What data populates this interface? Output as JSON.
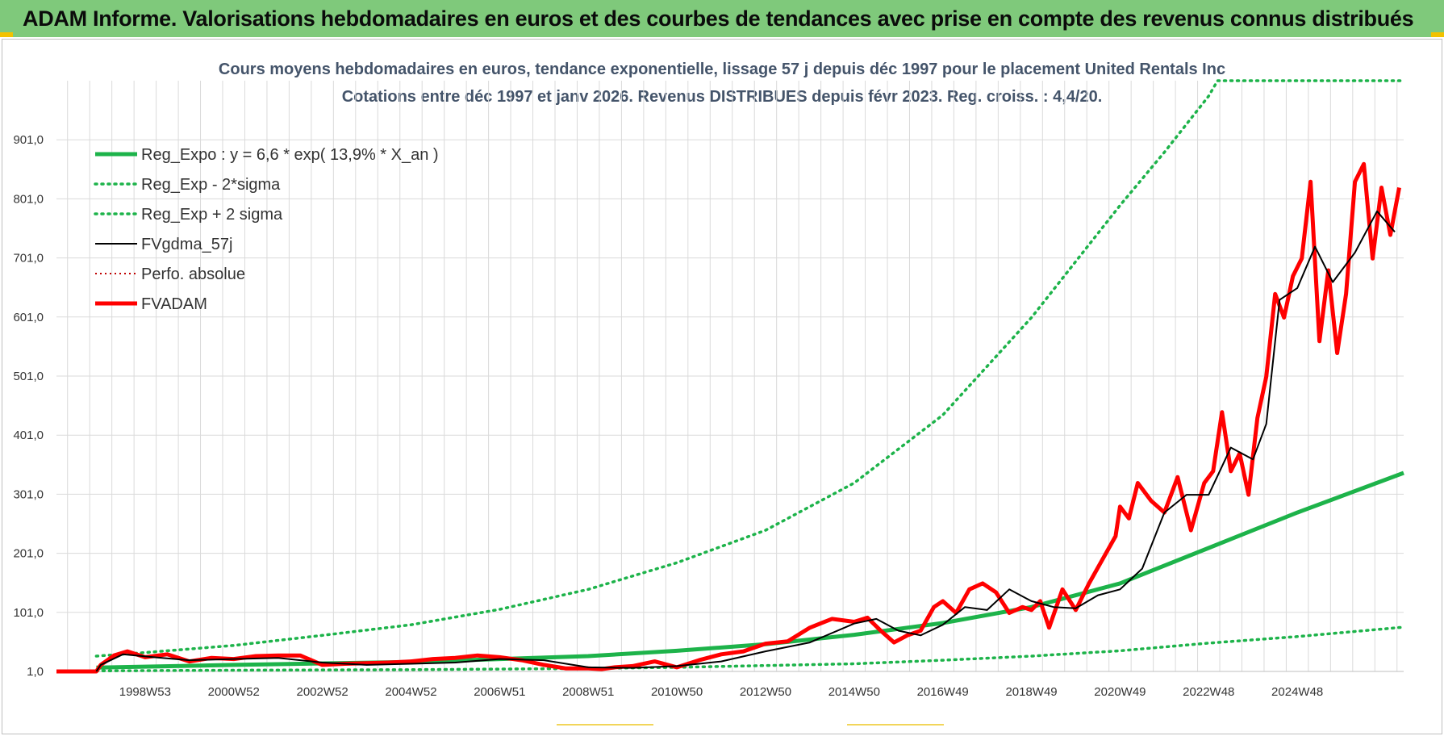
{
  "banner": {
    "title": "ADAM Informe. Valorisations hebdomadaires en euros et des courbes de tendances avec prise en compte des revenus connus distribués"
  },
  "colors": {
    "banner_bg": "#7fc97b",
    "reg_green": "#1db34a",
    "price_red": "#ff0000",
    "smooth_black": "#000000",
    "perfo_red": "#c00000",
    "grid": "#dadada",
    "title": "#44546a"
  },
  "chart_data": {
    "type": "line",
    "title": "Cours moyens hebdomadaires en euros, tendance exponentielle, lissage 57 j depuis déc 1997 pour le placement United Rentals Inc",
    "subtitle": "Cotations entre déc 1997 et janv 2026. Revenus DISTRIBUES depuis févr 2023. Reg. croiss. : 4,4/20.",
    "xlabel": "",
    "ylabel": "",
    "ylim": [
      1,
      1001
    ],
    "xlim": [
      1996.0,
      2026.4
    ],
    "y_ticks": [
      "1,0",
      "101,0",
      "201,0",
      "301,0",
      "401,0",
      "501,0",
      "601,0",
      "701,0",
      "801,0",
      "901,0"
    ],
    "x_ticks": [
      {
        "label": "1998W53",
        "x": 1998.0
      },
      {
        "label": "2000W52",
        "x": 2000.0
      },
      {
        "label": "2002W52",
        "x": 2002.0
      },
      {
        "label": "2004W52",
        "x": 2004.0
      },
      {
        "label": "2006W51",
        "x": 2006.0
      },
      {
        "label": "2008W51",
        "x": 2008.0
      },
      {
        "label": "2010W50",
        "x": 2010.0
      },
      {
        "label": "2012W50",
        "x": 2012.0
      },
      {
        "label": "2014W50",
        "x": 2014.0
      },
      {
        "label": "2016W49",
        "x": 2016.0
      },
      {
        "label": "2018W49",
        "x": 2018.0
      },
      {
        "label": "2020W49",
        "x": 2020.0
      },
      {
        "label": "2022W48",
        "x": 2022.0
      },
      {
        "label": "2024W48",
        "x": 2024.0
      }
    ],
    "legend_position": "top-left",
    "series": [
      {
        "name": "Reg_Expo : y = 6,6 * exp( 13,9% *  X_an )",
        "style": "solid-thick",
        "color": "#1db34a",
        "x": [
          1996.9,
          2000,
          2004,
          2008,
          2010,
          2012,
          2014,
          2016,
          2018,
          2020,
          2022,
          2024,
          2026.4
        ],
        "y": [
          7.4,
          12,
          17,
          27,
          36,
          47,
          63,
          83,
          110,
          150,
          210,
          270,
          337
        ]
      },
      {
        "name": "Reg_Exp - 2*sigma",
        "style": "dotted",
        "color": "#1db34a",
        "x": [
          1996.9,
          2000,
          2004,
          2008,
          2010,
          2012,
          2014,
          2016,
          2018,
          2020,
          2022,
          2024,
          2026.4
        ],
        "y": [
          2,
          3,
          4,
          6,
          8,
          11,
          14,
          20,
          27,
          36,
          49,
          60,
          76
        ]
      },
      {
        "name": "Reg_Exp + 2 sigma",
        "style": "dotted",
        "color": "#1db34a",
        "x": [
          1996.9,
          1998,
          2000,
          2002,
          2004,
          2006,
          2008,
          2010,
          2012,
          2014,
          2016,
          2018,
          2020,
          2021,
          2022,
          2022.2,
          2026.4
        ],
        "y": [
          27,
          33,
          45,
          62,
          80,
          106,
          140,
          185,
          240,
          320,
          435,
          600,
          790,
          880,
          975,
          1001,
          1001
        ]
      },
      {
        "name": "FVgdma_57j",
        "style": "solid-thin",
        "color": "#000000",
        "x": [
          1996.9,
          1997.0,
          1997.5,
          1998.2,
          1999,
          2000,
          2001,
          2002,
          2003,
          2004,
          2005,
          2006,
          2007,
          2008,
          2009,
          2010,
          2011,
          2012,
          2013,
          2014,
          2014.5,
          2015,
          2015.5,
          2016,
          2016.5,
          2017,
          2017.5,
          2018,
          2018.5,
          2019,
          2019.5,
          2020,
          2020.5,
          2021,
          2021.5,
          2022,
          2022.5,
          2023,
          2023.3,
          2023.6,
          2024,
          2024.4,
          2024.8,
          2025.3,
          2025.8,
          2026.2
        ],
        "y": [
          1,
          12,
          30,
          25,
          20,
          22,
          24,
          16,
          12,
          14,
          16,
          22,
          20,
          8,
          7,
          10,
          18,
          35,
          50,
          82,
          90,
          70,
          62,
          80,
          110,
          105,
          140,
          120,
          110,
          108,
          130,
          140,
          175,
          270,
          300,
          300,
          380,
          360,
          420,
          630,
          650,
          720,
          660,
          710,
          780,
          745
        ]
      },
      {
        "name": "Perfo. absolue",
        "style": "dotted-thin",
        "color": "#c00000",
        "x": [
          1996.0,
          1996.9
        ],
        "y": [
          1,
          1
        ]
      },
      {
        "name": "FVADAM",
        "style": "solid-thick",
        "color": "#ff0000",
        "x": [
          1996.0,
          1996.9,
          1997.0,
          1997.3,
          1997.6,
          1998.0,
          1998.5,
          1999,
          1999.5,
          2000,
          2000.5,
          2001,
          2001.5,
          2002,
          2002.5,
          2003,
          2003.5,
          2004,
          2004.5,
          2005,
          2005.5,
          2006,
          2006.5,
          2007,
          2007.5,
          2008,
          2008.3,
          2008.6,
          2009,
          2009.5,
          2010,
          2010.5,
          2011,
          2011.5,
          2012,
          2012.5,
          2013,
          2013.5,
          2014,
          2014.3,
          2014.6,
          2014.9,
          2015.2,
          2015.5,
          2015.8,
          2016,
          2016.3,
          2016.6,
          2016.9,
          2017.2,
          2017.5,
          2017.8,
          2018,
          2018.2,
          2018.4,
          2018.7,
          2019,
          2019.3,
          2019.6,
          2019.9,
          2020.0,
          2020.2,
          2020.4,
          2020.7,
          2021,
          2021.3,
          2021.6,
          2021.9,
          2022.1,
          2022.3,
          2022.5,
          2022.7,
          2022.9,
          2023.1,
          2023.3,
          2023.5,
          2023.7,
          2023.9,
          2024.1,
          2024.3,
          2024.5,
          2024.7,
          2024.9,
          2025.1,
          2025.3,
          2025.5,
          2025.7,
          2025.9,
          2026.1,
          2026.3
        ],
        "y": [
          1,
          1,
          12,
          28,
          35,
          25,
          30,
          18,
          24,
          22,
          27,
          28,
          28,
          12,
          14,
          15,
          16,
          18,
          22,
          24,
          28,
          25,
          20,
          12,
          6,
          6,
          5,
          8,
          10,
          18,
          8,
          20,
          30,
          35,
          48,
          52,
          75,
          90,
          85,
          92,
          70,
          50,
          62,
          70,
          110,
          120,
          100,
          140,
          150,
          135,
          100,
          110,
          105,
          120,
          75,
          140,
          105,
          150,
          190,
          230,
          280,
          260,
          320,
          290,
          270,
          330,
          240,
          320,
          340,
          440,
          340,
          370,
          300,
          430,
          500,
          640,
          600,
          670,
          700,
          830,
          560,
          680,
          540,
          640,
          830,
          860,
          700,
          820,
          740,
          820
        ]
      }
    ]
  }
}
